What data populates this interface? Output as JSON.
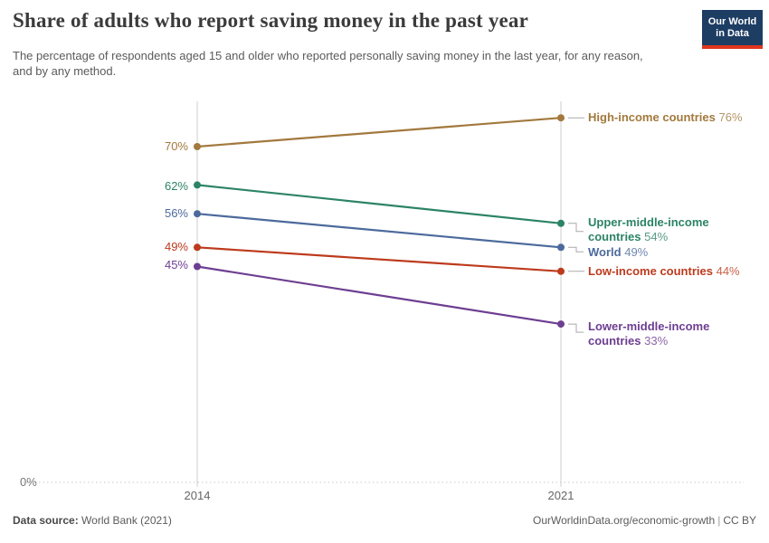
{
  "header": {
    "title": "Share of adults who report saving money in the past year",
    "subtitle": "The percentage of respondents aged 15 and older who reported personally saving money in the last year, for any reason, and by any method.",
    "logo": {
      "line1": "Our World",
      "line2": "in Data",
      "bg_color": "#1d3d63",
      "accent_color": "#e0351c"
    }
  },
  "chart_data": {
    "type": "line",
    "title": "Share of adults who report saving money in the past year",
    "x": [
      2014,
      2021
    ],
    "x_tick_labels": [
      "2014",
      "2021"
    ],
    "ylim": [
      0,
      80
    ],
    "y_zero_label": "0%",
    "grid": "vertical-year-lines-and-dotted-zero-line",
    "legend_position": "right-inline-labels",
    "series": [
      {
        "name": "High-income countries",
        "values": [
          70,
          76
        ],
        "start_label": "70%",
        "end_label": "76%",
        "color": "#a2793d"
      },
      {
        "name": "Upper-middle-income countries",
        "values": [
          62,
          54
        ],
        "start_label": "62%",
        "end_label": "54%",
        "color": "#2c8465"
      },
      {
        "name": "World",
        "values": [
          56,
          49
        ],
        "start_label": "56%",
        "end_label": "49%",
        "color": "#4c6a9c"
      },
      {
        "name": "Low-income countries",
        "values": [
          49,
          44
        ],
        "start_label": "49%",
        "end_label": "44%",
        "color": "#bd3a1c"
      },
      {
        "name": "Lower-middle-income countries",
        "values": [
          45,
          33
        ],
        "start_label": "45%",
        "end_label": "33%",
        "color": "#6d3e91"
      }
    ]
  },
  "footer": {
    "source_label": "Data source:",
    "source_value": "World Bank (2021)",
    "credit": "OurWorldinData.org/economic-growth",
    "separator": "|",
    "license": "CC BY"
  }
}
